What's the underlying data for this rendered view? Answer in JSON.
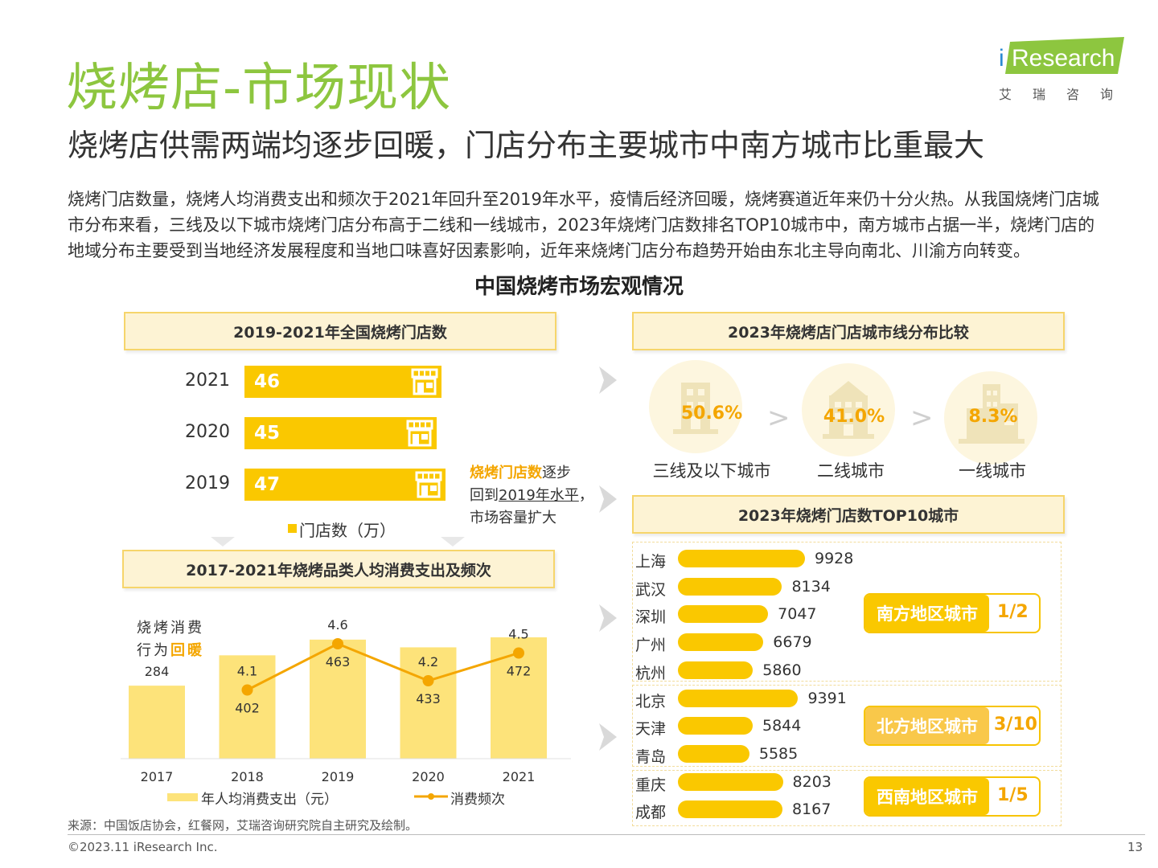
{
  "title": "烧烤店-市场现状",
  "subtitle": "烧烤店供需两端均逐步回暖，门店分布主要城市中南方城市比重最大",
  "intro": "烧烤门店数量，烧烤人均消费支出和频次于2021年回升至2019年水平，疫情后经济回暖，烧烤赛道近年来仍十分火热。从我国烧烤门店城市分布来看，三线及以下城市烧烤门店分布高于二线和一线城市，2023年烧烤门店数排名TOP10城市中，南方城市占据一半，烧烤门店的地域分布主要受到当地经济发展程度和当地口味喜好因素影响，近年来烧烤门店分布趋势开始由东北主导向南北、川渝方向转变。",
  "macro_title": "中国烧烤市场宏观情况",
  "logo": {
    "i": "i",
    "word": "Research",
    "cn": "艾瑞咨询"
  },
  "colors": {
    "accent_green": "#8dc63f",
    "bar_yellow": "#fac800",
    "light_bar": "#fde37a",
    "orange": "#f4a600"
  },
  "store_count": {
    "header": "2019-2021年全国烧烤门店数",
    "note_highlight": "烧烤门店数",
    "note_rest1": "逐步",
    "note_line2_pre": "回到",
    "note_line2_u": "2019年水平",
    "note_line2_post": "，",
    "note_line3": "市场容量扩大",
    "legend": "门店数（万）"
  },
  "spend_freq": {
    "header": "2017-2021年烧烤品类人均消费支出及频次",
    "note_line1": "烧烤消费",
    "note_line2_pre": "行为",
    "note_line2_hl": "回暖",
    "legend_bar": "年人均消费支出（元）",
    "legend_line": "消费频次"
  },
  "city_tier": {
    "header": "2023年烧烤店门店城市线分布比较",
    "items": [
      {
        "label": "三线及以下城市",
        "pct": "50.6%",
        "icon": "low-building-icon"
      },
      {
        "label": "二线城市",
        "pct": "41.0%",
        "icon": "mid-building-icon"
      },
      {
        "label": "一线城市",
        "pct": "8.3%",
        "icon": "skyscraper-icon"
      }
    ],
    "sep": ">"
  },
  "top10": {
    "header": "2023年烧烤门店数TOP10城市",
    "regions": [
      {
        "label": "南方地区城市",
        "frac": "1/2"
      },
      {
        "label": "北方地区城市",
        "frac": "3/10"
      },
      {
        "label": "西南地区城市",
        "frac": "1/5"
      }
    ]
  },
  "chart_data": [
    {
      "type": "bar",
      "orientation": "horizontal",
      "title": "2019-2021年全国烧烤门店数",
      "categories": [
        "2021",
        "2020",
        "2019"
      ],
      "series": [
        {
          "name": "门店数（万）",
          "values": [
            46,
            45,
            47
          ]
        }
      ],
      "legend": "bottom"
    },
    {
      "type": "bar",
      "title": "2017-2021年烧烤品类人均消费支出及频次",
      "categories": [
        "2017",
        "2018",
        "2019",
        "2020",
        "2021"
      ],
      "series": [
        {
          "name": "年人均消费支出（元）",
          "type": "bar",
          "values": [
            284,
            402,
            463,
            433,
            472
          ]
        },
        {
          "name": "消费频次",
          "type": "line",
          "x": [
            "2018",
            "2019",
            "2020",
            "2021"
          ],
          "values": [
            4.1,
            4.6,
            4.2,
            4.5
          ]
        }
      ],
      "legend": "bottom"
    },
    {
      "type": "bar",
      "orientation": "horizontal",
      "title": "2023年烧烤门店数TOP10城市",
      "categories": [
        "上海",
        "武汉",
        "深圳",
        "广州",
        "杭州",
        "北京",
        "天津",
        "青岛",
        "重庆",
        "成都"
      ],
      "values": [
        9928,
        8134,
        7047,
        6679,
        5860,
        9391,
        5844,
        5585,
        8203,
        8167
      ]
    }
  ],
  "source": "来源：中国饭店协会，红餐网，艾瑞咨询研究院自主研究及绘制。",
  "copyright": "©2023.11 iResearch Inc.",
  "page_number": "13"
}
